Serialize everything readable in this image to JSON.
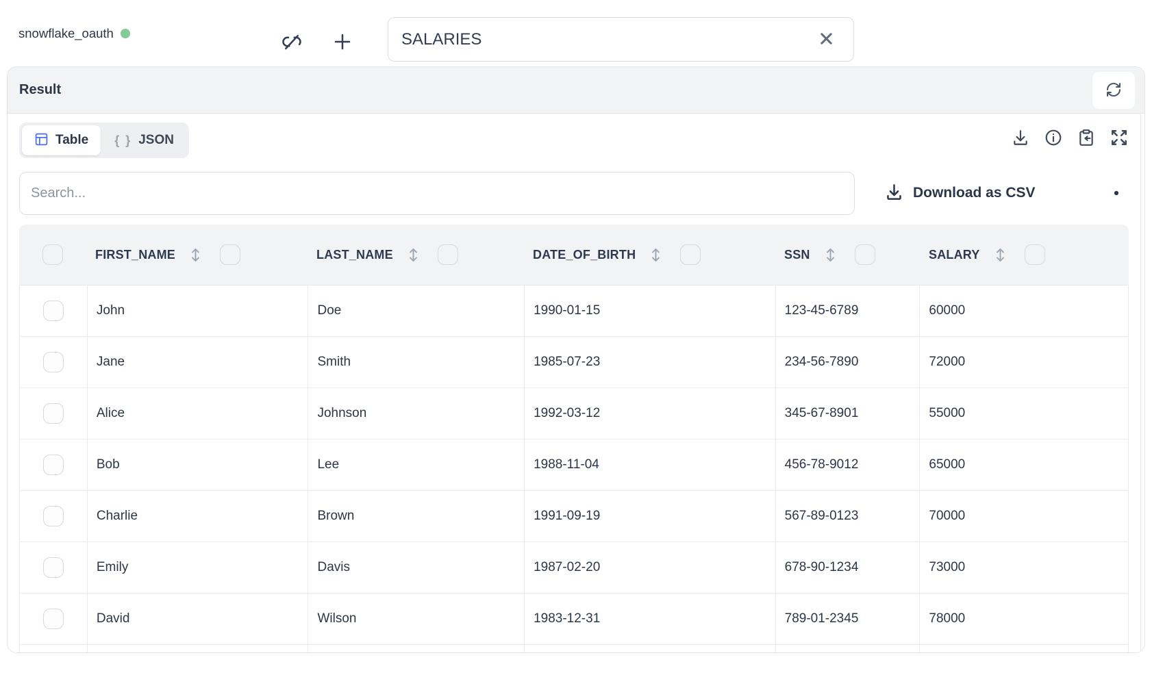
{
  "colors": {
    "accent_blue": "#4c6ef5",
    "status_green": "#85ca97",
    "header_bg": "#f1f3f5",
    "border": "#e2e5ea",
    "text_dark": "#2b3647",
    "text_muted": "#8b94a2"
  },
  "topbar": {
    "connection_name": "snowflake_oauth",
    "query_input": {
      "value": "SALARIES"
    }
  },
  "result_panel": {
    "title": "Result",
    "tabs": [
      {
        "label": "Table",
        "active": true
      },
      {
        "label": "JSON",
        "active": false
      }
    ],
    "json_glyph": "{ }",
    "search": {
      "placeholder": "Search..."
    },
    "download_csv_label": "Download as CSV",
    "table": {
      "columns": [
        "FIRST_NAME",
        "LAST_NAME",
        "DATE_OF_BIRTH",
        "SSN",
        "SALARY"
      ],
      "rows": [
        [
          "John",
          "Doe",
          "1990-01-15",
          "123-45-6789",
          "60000"
        ],
        [
          "Jane",
          "Smith",
          "1985-07-23",
          "234-56-7890",
          "72000"
        ],
        [
          "Alice",
          "Johnson",
          "1992-03-12",
          "345-67-8901",
          "55000"
        ],
        [
          "Bob",
          "Lee",
          "1988-11-04",
          "456-78-9012",
          "65000"
        ],
        [
          "Charlie",
          "Brown",
          "1991-09-19",
          "567-89-0123",
          "70000"
        ],
        [
          "Emily",
          "Davis",
          "1987-02-20",
          "678-90-1234",
          "73000"
        ],
        [
          "David",
          "Wilson",
          "1983-12-31",
          "789-01-2345",
          "78000"
        ]
      ]
    }
  }
}
